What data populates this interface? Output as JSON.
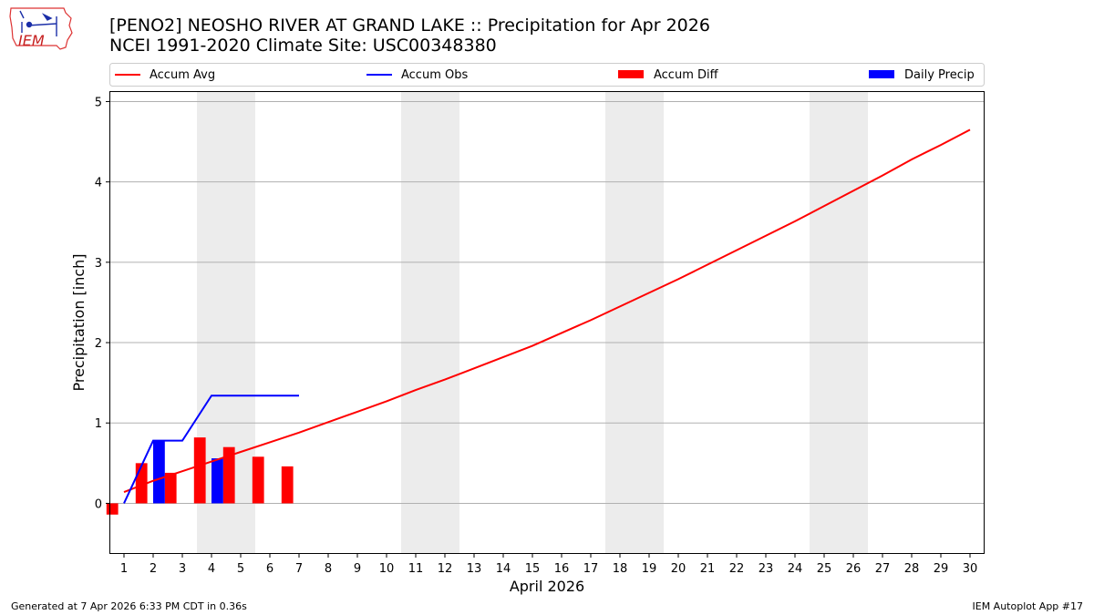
{
  "header": {
    "title_line1": "[PENO2] NEOSHO RIVER  AT GRAND LAKE :: Precipitation for Apr 2026",
    "title_line2": "NCEI 1991-2020 Climate Site: USC00348380",
    "logo_text": "IEM"
  },
  "footer": {
    "generated": "Generated at 7 Apr 2026 6:33 PM CDT in 0.36s",
    "app": "IEM Autoplot App #17"
  },
  "colors": {
    "avg": "#ff0000",
    "obs": "#0000ff",
    "diff": "#ff0000",
    "daily": "#0000ff",
    "weekend_shade": "#ececec",
    "grid": "#b0b0b0"
  },
  "chart_data": {
    "type": "bar",
    "xlabel": "April 2026",
    "ylabel": "Precipitation [inch]",
    "x": [
      1,
      2,
      3,
      4,
      5,
      6,
      7,
      8,
      9,
      10,
      11,
      12,
      13,
      14,
      15,
      16,
      17,
      18,
      19,
      20,
      21,
      22,
      23,
      24,
      25,
      26,
      27,
      28,
      29,
      30
    ],
    "xlim": [
      0.5,
      30.5
    ],
    "ylim": [
      -0.63,
      5.13
    ],
    "yticks": [
      0,
      1,
      2,
      3,
      4,
      5
    ],
    "grid": "y",
    "legend_placement": "top",
    "weekend_shading": [
      [
        3.5,
        5.5
      ],
      [
        10.5,
        12.5
      ],
      [
        17.5,
        19.5
      ],
      [
        24.5,
        26.5
      ]
    ],
    "series": [
      {
        "name": "Accum Avg",
        "kind": "line",
        "x": [
          1,
          2,
          3,
          4,
          5,
          6,
          7,
          8,
          9,
          10,
          11,
          12,
          13,
          14,
          15,
          16,
          17,
          18,
          19,
          20,
          21,
          22,
          23,
          24,
          25,
          26,
          27,
          28,
          29,
          30
        ],
        "values": [
          0.14,
          0.28,
          0.4,
          0.52,
          0.64,
          0.76,
          0.88,
          1.01,
          1.14,
          1.27,
          1.41,
          1.54,
          1.68,
          1.82,
          1.96,
          2.12,
          2.28,
          2.45,
          2.62,
          2.79,
          2.97,
          3.15,
          3.33,
          3.51,
          3.7,
          3.89,
          4.08,
          4.28,
          4.46,
          4.65
        ]
      },
      {
        "name": "Accum Obs",
        "kind": "line",
        "x": [
          1,
          2,
          3,
          4,
          5,
          6,
          7
        ],
        "values": [
          0.0,
          0.78,
          0.78,
          1.34,
          1.34,
          1.34,
          1.34
        ]
      },
      {
        "name": "Accum Diff",
        "kind": "bar",
        "x": [
          1,
          2,
          3,
          4,
          5,
          6,
          7
        ],
        "values": [
          -0.14,
          0.5,
          0.38,
          0.82,
          0.7,
          0.58,
          0.46
        ]
      },
      {
        "name": "Daily Precip",
        "kind": "bar",
        "x": [
          2,
          4
        ],
        "values": [
          0.78,
          0.56
        ]
      }
    ]
  }
}
